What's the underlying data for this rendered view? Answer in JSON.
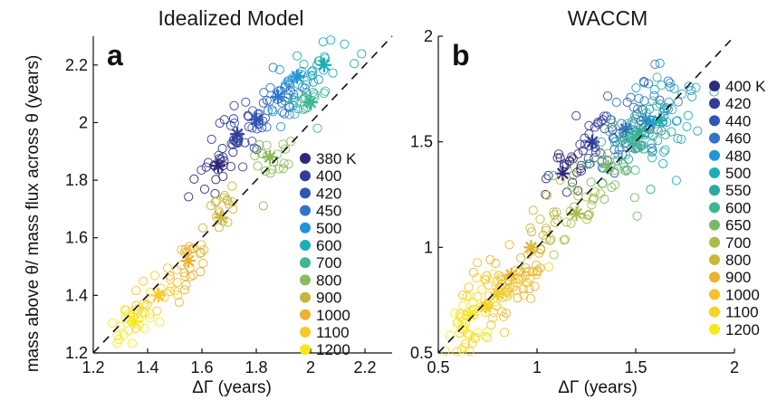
{
  "chart_data": [
    {
      "type": "scatter",
      "panel": "a",
      "title": "Idealized Model",
      "xlabel": "ΔΓ (years)",
      "ylabel": "mass above θ/ mass flux across θ (years)",
      "xlim": [
        1.2,
        2.3
      ],
      "ylim": [
        1.2,
        2.3
      ],
      "xticks": [
        "1.2",
        "1.4",
        "1.6",
        "1.8",
        "2",
        "2.2"
      ],
      "yticks": [
        "1.2",
        "1.4",
        "1.6",
        "1.8",
        "2",
        "2.2"
      ],
      "legend_position": "right",
      "one_to_one_line": true,
      "series": [
        {
          "name": "380 K",
          "color": "#2d2a7a",
          "mean": [
            1.66,
            1.85
          ],
          "spread": [
            0.05,
            0.045
          ],
          "n": 22
        },
        {
          "name": "400",
          "color": "#333c99",
          "mean": [
            1.73,
            1.96
          ],
          "spread": [
            0.05,
            0.05
          ],
          "n": 22
        },
        {
          "name": "420",
          "color": "#3155b5",
          "mean": [
            1.8,
            2.01
          ],
          "spread": [
            0.05,
            0.05
          ],
          "n": 22
        },
        {
          "name": "450",
          "color": "#2f74c8",
          "mean": [
            1.88,
            2.09
          ],
          "spread": [
            0.05,
            0.05
          ],
          "n": 22
        },
        {
          "name": "500",
          "color": "#1f95d6",
          "mean": [
            1.95,
            2.16
          ],
          "spread": [
            0.05,
            0.05
          ],
          "n": 22
        },
        {
          "name": "600",
          "color": "#1eaeb8",
          "mean": [
            2.05,
            2.2
          ],
          "spread": [
            0.05,
            0.05
          ],
          "n": 22
        },
        {
          "name": "700",
          "color": "#3fb693",
          "mean": [
            2.0,
            2.07
          ],
          "spread": [
            0.04,
            0.05
          ],
          "n": 18
        },
        {
          "name": "800",
          "color": "#8abb5c",
          "mean": [
            1.85,
            1.88
          ],
          "spread": [
            0.04,
            0.05
          ],
          "n": 20
        },
        {
          "name": "900",
          "color": "#c6b63e",
          "mean": [
            1.67,
            1.67
          ],
          "spread": [
            0.04,
            0.05
          ],
          "n": 20
        },
        {
          "name": "1000",
          "color": "#edb22f",
          "mean": [
            1.55,
            1.52
          ],
          "spread": [
            0.04,
            0.04
          ],
          "n": 22
        },
        {
          "name": "1100",
          "color": "#f6c82a",
          "mean": [
            1.44,
            1.4
          ],
          "spread": [
            0.05,
            0.04
          ],
          "n": 24
        },
        {
          "name": "1200",
          "color": "#f7e81c",
          "mean": [
            1.35,
            1.31
          ],
          "spread": [
            0.05,
            0.04
          ],
          "n": 24
        }
      ]
    },
    {
      "type": "scatter",
      "panel": "b",
      "title": "WACCM",
      "xlabel": "ΔΓ (years)",
      "ylabel": "",
      "xlim": [
        0.5,
        2.0
      ],
      "ylim": [
        0.5,
        2.0
      ],
      "xticks": [
        "0.5",
        "1",
        "1.5",
        "2"
      ],
      "yticks": [
        "0.5",
        "1",
        "1.5",
        "2"
      ],
      "legend_position": "right",
      "one_to_one_line": true,
      "series": [
        {
          "name": "400 K",
          "color": "#2d2a7a",
          "mean": [
            1.13,
            1.35
          ],
          "spread": [
            0.06,
            0.06
          ],
          "n": 24
        },
        {
          "name": "420",
          "color": "#333c99",
          "mean": [
            1.28,
            1.5
          ],
          "spread": [
            0.07,
            0.08
          ],
          "n": 24
        },
        {
          "name": "440",
          "color": "#3155b5",
          "mean": [
            1.45,
            1.56
          ],
          "spread": [
            0.08,
            0.09
          ],
          "n": 24
        },
        {
          "name": "460",
          "color": "#2f74c8",
          "mean": [
            1.55,
            1.6
          ],
          "spread": [
            0.09,
            0.1
          ],
          "n": 24
        },
        {
          "name": "480",
          "color": "#1f95d6",
          "mean": [
            1.57,
            1.59
          ],
          "spread": [
            0.1,
            0.1
          ],
          "n": 24
        },
        {
          "name": "500",
          "color": "#1eaeb8",
          "mean": [
            1.62,
            1.6
          ],
          "spread": [
            0.12,
            0.1
          ],
          "n": 24
        },
        {
          "name": "550",
          "color": "#2aaa9c",
          "mean": [
            1.52,
            1.55
          ],
          "spread": [
            0.12,
            0.1
          ],
          "n": 24
        },
        {
          "name": "600",
          "color": "#3fb693",
          "mean": [
            1.5,
            1.52
          ],
          "spread": [
            0.12,
            0.1
          ],
          "n": 24
        },
        {
          "name": "650",
          "color": "#79b966",
          "mean": [
            1.36,
            1.38
          ],
          "spread": [
            0.1,
            0.1
          ],
          "n": 24
        },
        {
          "name": "700",
          "color": "#a9bd4b",
          "mean": [
            1.2,
            1.16
          ],
          "spread": [
            0.08,
            0.09
          ],
          "n": 24
        },
        {
          "name": "800",
          "color": "#cdb53c",
          "mean": [
            0.97,
            1.0
          ],
          "spread": [
            0.08,
            0.09
          ],
          "n": 24
        },
        {
          "name": "900",
          "color": "#edb22f",
          "mean": [
            0.87,
            0.87
          ],
          "spread": [
            0.09,
            0.1
          ],
          "n": 30
        },
        {
          "name": "1000",
          "color": "#f3c12a",
          "mean": [
            0.8,
            0.78
          ],
          "spread": [
            0.09,
            0.1
          ],
          "n": 30
        },
        {
          "name": "1100",
          "color": "#f6d324",
          "mean": [
            0.74,
            0.72
          ],
          "spread": [
            0.1,
            0.1
          ],
          "n": 30
        },
        {
          "name": "1200",
          "color": "#f7e81c",
          "mean": [
            0.66,
            0.68
          ],
          "spread": [
            0.09,
            0.09
          ],
          "n": 30
        }
      ]
    }
  ]
}
